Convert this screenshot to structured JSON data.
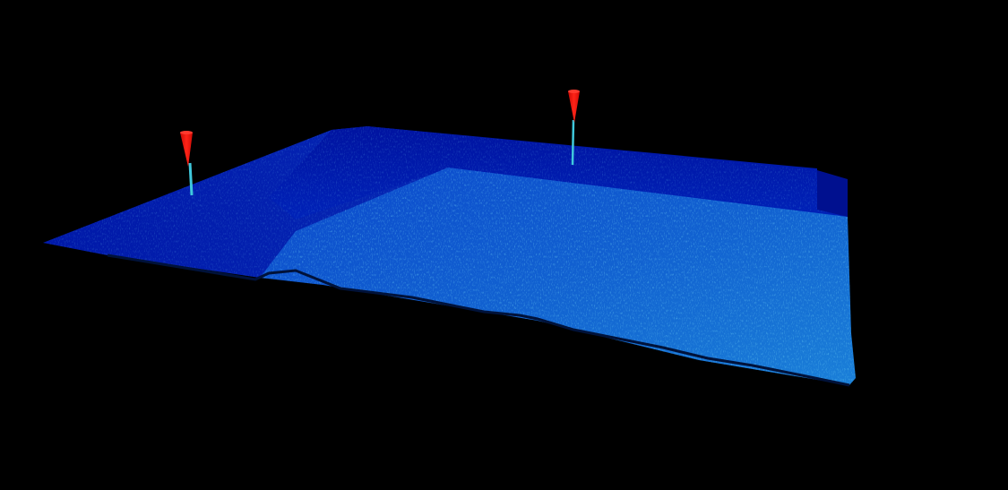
{
  "scene": {
    "background_color": "#000000",
    "surface_colors": {
      "low": "#001a99",
      "mid": "#0a3fc4",
      "high": "#1a8fd6",
      "peak": "#39c6e0"
    },
    "marker_color": "#ff1a12",
    "marker_count": 2,
    "markers": [
      {
        "name": "left-peak-marker",
        "icon": "red-cone-marker"
      },
      {
        "name": "center-peak-marker",
        "icon": "red-cone-marker"
      }
    ]
  }
}
